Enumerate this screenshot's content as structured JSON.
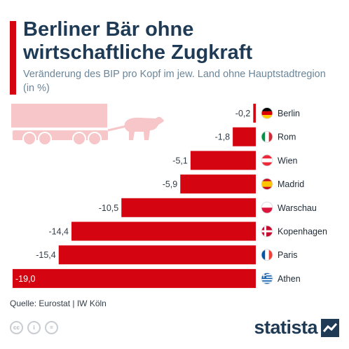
{
  "header": {
    "title": "Berliner Bär ohne wirtschaftliche Zugkraft",
    "subtitle": "Veränderung des BIP pro Kopf im jew. Land ohne Hauptstadtregion (in %)"
  },
  "chart_data": {
    "type": "bar",
    "orientation": "horizontal",
    "categories": [
      "Berlin",
      "Rom",
      "Wien",
      "Madrid",
      "Warschau",
      "Kopenhagen",
      "Paris",
      "Athen"
    ],
    "values": [
      -0.2,
      -1.8,
      -5.1,
      -5.9,
      -10.5,
      -14.4,
      -15.4,
      -19.0
    ],
    "value_labels": [
      "-0,2",
      "-1,8",
      "-5,1",
      "-5,9",
      "-10,5",
      "-14,4",
      "-15,4",
      "-19,0"
    ],
    "xlim": [
      -19.0,
      0
    ],
    "bar_color": "#d40511",
    "flags": [
      "flag-germany-icon",
      "flag-italy-icon",
      "flag-austria-icon",
      "flag-spain-icon",
      "flag-poland-icon",
      "flag-denmark-icon",
      "flag-france-icon",
      "flag-greece-icon"
    ]
  },
  "footer": {
    "source": "Quelle: Eurostat | IW Köln",
    "brand": "statista",
    "cc_icons": [
      "cc-icon",
      "by-icon",
      "nd-icon"
    ]
  }
}
